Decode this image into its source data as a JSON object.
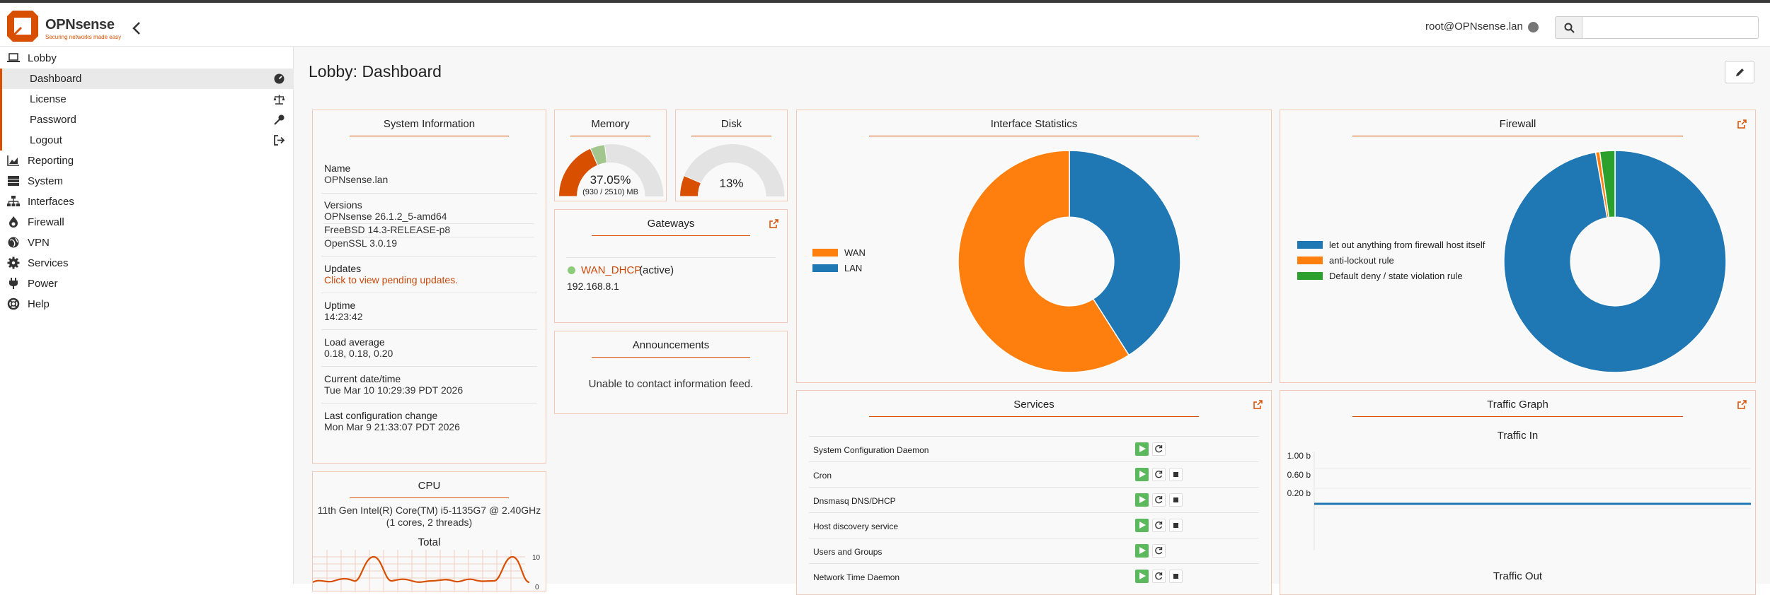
{
  "header": {
    "brand": "OPNsense",
    "brand_tagline": "Securing networks made easy",
    "user": "root@OPNsense.lan"
  },
  "sidebar": {
    "items": [
      {
        "label": "Lobby",
        "icon": "laptop-icon"
      },
      {
        "label": "Reporting",
        "icon": "area-chart-icon"
      },
      {
        "label": "System",
        "icon": "server-icon"
      },
      {
        "label": "Interfaces",
        "icon": "sitemap-icon"
      },
      {
        "label": "Firewall",
        "icon": "fire-icon"
      },
      {
        "label": "VPN",
        "icon": "globe-icon"
      },
      {
        "label": "Services",
        "icon": "cog-icon"
      },
      {
        "label": "Power",
        "icon": "plug-icon"
      },
      {
        "label": "Help",
        "icon": "life-ring-icon"
      }
    ],
    "lobby_sub": [
      {
        "label": "Dashboard",
        "icon": "dashboard-icon"
      },
      {
        "label": "License",
        "icon": "balance-scale-icon"
      },
      {
        "label": "Password",
        "icon": "key-icon"
      },
      {
        "label": "Logout",
        "icon": "sign-out-icon"
      }
    ]
  },
  "page": {
    "title": "Lobby: Dashboard"
  },
  "system_info": {
    "title": "System Information",
    "name_label": "Name",
    "name": "OPNsense.lan",
    "versions_label": "Versions",
    "versions": [
      "OPNsense 26.1.2_5-amd64",
      "FreeBSD 14.3-RELEASE-p8",
      "OpenSSL 3.0.19"
    ],
    "updates_label": "Updates",
    "updates_link": "Click to view pending updates.",
    "uptime_label": "Uptime",
    "uptime": "14:23:42",
    "load_label": "Load average",
    "load": "0.18, 0.18, 0.20",
    "datetime_label": "Current date/time",
    "datetime": "Tue Mar 10 10:29:39 PDT 2026",
    "lastconfig_label": "Last configuration change",
    "lastconfig": "Mon Mar 9 21:33:07 PDT 2026"
  },
  "memory": {
    "title": "Memory",
    "percent": "37.05%",
    "detail": "(930 / 2510) MB",
    "used_fraction": 0.3705,
    "arc_fraction": 0.09
  },
  "disk": {
    "title": "Disk",
    "percent": "13%",
    "used_fraction": 0.13
  },
  "gateways": {
    "title": "Gateways",
    "name": "WAN_DHCP",
    "status": "(active)",
    "address": "192.168.8.1"
  },
  "announcements": {
    "title": "Announcements",
    "message": "Unable to contact information feed."
  },
  "cpu": {
    "title": "CPU",
    "model": "11th Gen Intel(R) Core(TM) i5-1135G7 @ 2.40GHz (1 cores, 2 threads)",
    "graph_title": "Total",
    "ytick_top": "10",
    "ytick_bottom": "0"
  },
  "interface_stats": {
    "title": "Interface Statistics",
    "legend": [
      {
        "label": "WAN",
        "color": "#ff7f0e"
      },
      {
        "label": "LAN",
        "color": "#1f77b4"
      }
    ],
    "slices": [
      {
        "label": "LAN",
        "fraction": 0.41,
        "color": "#1f77b4"
      },
      {
        "label": "WAN",
        "fraction": 0.59,
        "color": "#ff7f0e"
      }
    ]
  },
  "firewall": {
    "title": "Firewall",
    "legend": [
      {
        "label": "let out anything from firewall host itself",
        "color": "#1f77b4"
      },
      {
        "label": "anti-lockout rule",
        "color": "#ff7f0e"
      },
      {
        "label": "Default deny / state violation rule",
        "color": "#2ca02c"
      }
    ],
    "slices": [
      {
        "label": "let out anything from firewall host itself",
        "fraction": 0.972,
        "color": "#1f77b4"
      },
      {
        "label": "anti-lockout rule",
        "fraction": 0.006,
        "color": "#ff7f0e"
      },
      {
        "label": "Default deny / state violation rule",
        "fraction": 0.022,
        "color": "#2ca02c"
      }
    ]
  },
  "services": {
    "title": "Services",
    "rows": [
      {
        "name": "System Configuration Daemon",
        "stoppable": false
      },
      {
        "name": "Cron",
        "stoppable": true
      },
      {
        "name": "Dnsmasq DNS/DHCP",
        "stoppable": true
      },
      {
        "name": "Host discovery service",
        "stoppable": true
      },
      {
        "name": "Users and Groups",
        "stoppable": false
      },
      {
        "name": "Network Time Daemon",
        "stoppable": true
      }
    ]
  },
  "traffic": {
    "title": "Traffic Graph",
    "in_title": "Traffic In",
    "out_title": "Traffic Out",
    "yticks": [
      "1.00 b",
      "0.60 b",
      "0.20 b"
    ]
  },
  "chart_data": [
    {
      "type": "pie",
      "title": "Interface Statistics",
      "categories": [
        "LAN",
        "WAN"
      ],
      "values": [
        41,
        59
      ]
    },
    {
      "type": "pie",
      "title": "Firewall",
      "categories": [
        "let out anything from firewall host itself",
        "anti-lockout rule",
        "Default deny / state violation rule"
      ],
      "values": [
        97.2,
        0.6,
        2.2
      ]
    }
  ]
}
